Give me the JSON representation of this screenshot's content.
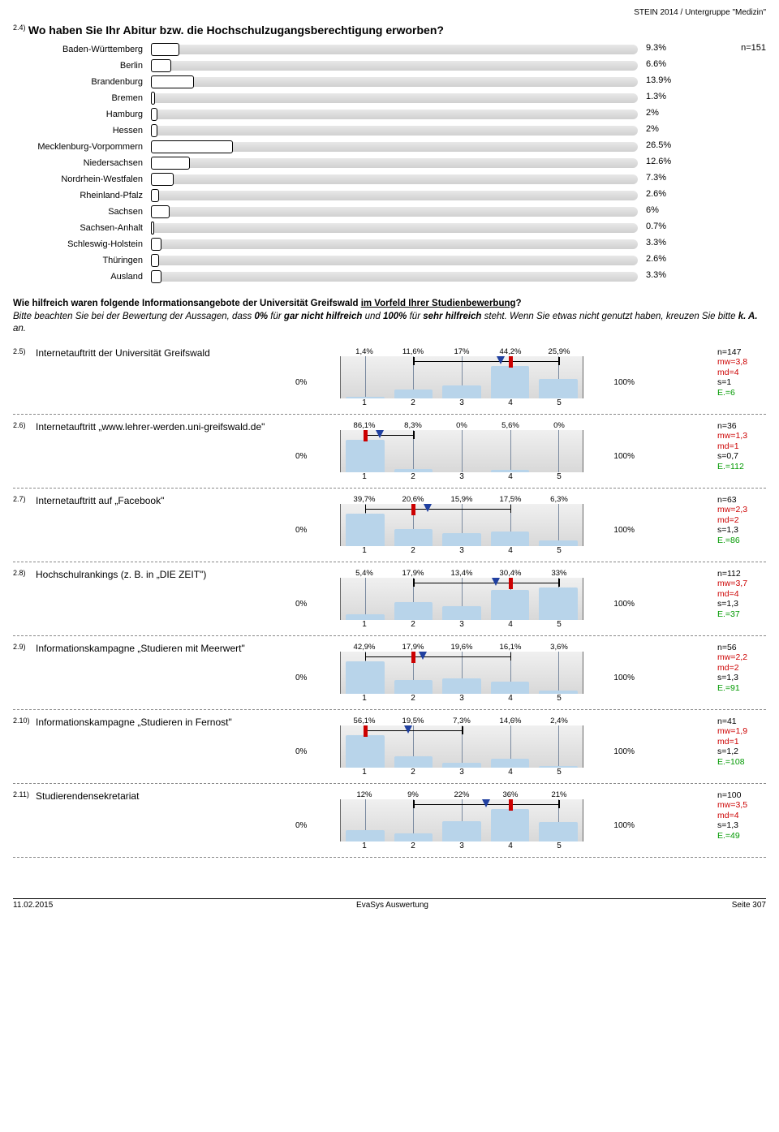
{
  "header": {
    "right": "STEIN 2014 / Untergruppe \"Medizin\""
  },
  "q24": {
    "num": "2.4)",
    "text": "Wo haben Sie Ihr Abitur bzw. die Hochschulzugangsberechtigung erworben?",
    "n": "n=151",
    "bar_track_width": 600,
    "max_pct": 26.5,
    "box_scale": 3.8,
    "items": [
      {
        "label": "Baden-Württemberg",
        "pct": 9.3,
        "disp": "9.3%"
      },
      {
        "label": "Berlin",
        "pct": 6.6,
        "disp": "6.6%"
      },
      {
        "label": "Brandenburg",
        "pct": 13.9,
        "disp": "13.9%"
      },
      {
        "label": "Bremen",
        "pct": 1.3,
        "disp": "1.3%"
      },
      {
        "label": "Hamburg",
        "pct": 2,
        "disp": "2%"
      },
      {
        "label": "Hessen",
        "pct": 2,
        "disp": "2%"
      },
      {
        "label": "Mecklenburg-Vorpommern",
        "pct": 26.5,
        "disp": "26.5%"
      },
      {
        "label": "Niedersachsen",
        "pct": 12.6,
        "disp": "12.6%"
      },
      {
        "label": "Nordrhein-Westfalen",
        "pct": 7.3,
        "disp": "7.3%"
      },
      {
        "label": "Rheinland-Pfalz",
        "pct": 2.6,
        "disp": "2.6%"
      },
      {
        "label": "Sachsen",
        "pct": 6,
        "disp": "6%"
      },
      {
        "label": "Sachsen-Anhalt",
        "pct": 0.7,
        "disp": "0.7%"
      },
      {
        "label": "Schleswig-Holstein",
        "pct": 3.3,
        "disp": "3.3%"
      },
      {
        "label": "Thüringen",
        "pct": 2.6,
        "disp": "2.6%"
      },
      {
        "label": "Ausland",
        "pct": 3.3,
        "disp": "3.3%"
      }
    ]
  },
  "intro": {
    "line1_a": "Wie hilfreich waren folgende Informationsangebote der Universität Greifswald ",
    "line1_u": "im Vorfeld Ihrer Studienbewerbung",
    "line1_b": "?",
    "line2_a": "Bitte beachten Sie bei der Bewertung der Aussagen, dass ",
    "line2_b": "0%",
    "line2_c": " für ",
    "line2_d": "gar nicht hilfreich",
    "line2_e": " und ",
    "line2_f": "100%",
    "line2_g": " für ",
    "line2_h": "sehr hilfreich",
    "line2_i": " steht. Wenn Sie etwas nicht genutzt haben, kreuzen Sie bitte ",
    "line2_j": "k. A.",
    "line2_k": " an."
  },
  "likert": {
    "left_label": "0%",
    "right_label": "100%",
    "axis": [
      "1",
      "2",
      "3",
      "4",
      "5"
    ],
    "items": [
      {
        "num": "2.5)",
        "text": "Internetauftritt der Universität Greifswald",
        "pcts": [
          "1,4%",
          "11,6%",
          "17%",
          "44,2%",
          "25,9%"
        ],
        "vals": [
          1.4,
          11.6,
          17,
          44.2,
          25.9
        ],
        "whisk_lo": 2,
        "whisk_hi": 5,
        "median": 4,
        "mean": 3.8,
        "stats": {
          "n": "n=147",
          "mw": "mw=3,8",
          "md": "md=4",
          "s": "s=1",
          "e": "E.=6"
        }
      },
      {
        "num": "2.6)",
        "text": "Internetauftritt „www.lehrer-werden.uni-greifswald.de\"",
        "pcts": [
          "86,1%",
          "8,3%",
          "0%",
          "5,6%",
          "0%"
        ],
        "vals": [
          86.1,
          8.3,
          0,
          5.6,
          0
        ],
        "whisk_lo": 1,
        "whisk_hi": 2,
        "median": 1,
        "mean": 1.3,
        "stats": {
          "n": "n=36",
          "mw": "mw=1,3",
          "md": "md=1",
          "s": "s=0,7",
          "e": "E.=112"
        }
      },
      {
        "num": "2.7)",
        "text": "Internetauftritt auf „Facebook\"",
        "pcts": [
          "39,7%",
          "20,6%",
          "15,9%",
          "17,5%",
          "6,3%"
        ],
        "vals": [
          39.7,
          20.6,
          15.9,
          17.5,
          6.3
        ],
        "whisk_lo": 1,
        "whisk_hi": 4,
        "median": 2,
        "mean": 2.3,
        "stats": {
          "n": "n=63",
          "mw": "mw=2,3",
          "md": "md=2",
          "s": "s=1,3",
          "e": "E.=86"
        }
      },
      {
        "num": "2.8)",
        "text": "Hochschulrankings (z. B. in „DIE ZEIT\")",
        "pcts": [
          "5,4%",
          "17,9%",
          "13,4%",
          "30,4%",
          "33%"
        ],
        "vals": [
          5.4,
          17.9,
          13.4,
          30.4,
          33
        ],
        "whisk_lo": 2,
        "whisk_hi": 5,
        "median": 4,
        "mean": 3.7,
        "stats": {
          "n": "n=112",
          "mw": "mw=3,7",
          "md": "md=4",
          "s": "s=1,3",
          "e": "E.=37"
        }
      },
      {
        "num": "2.9)",
        "text": "Informationskampagne „Studieren mit Meerwert\"",
        "pcts": [
          "42,9%",
          "17,9%",
          "19,6%",
          "16,1%",
          "3,6%"
        ],
        "vals": [
          42.9,
          17.9,
          19.6,
          16.1,
          3.6
        ],
        "whisk_lo": 1,
        "whisk_hi": 4,
        "median": 2,
        "mean": 2.2,
        "stats": {
          "n": "n=56",
          "mw": "mw=2,2",
          "md": "md=2",
          "s": "s=1,3",
          "e": "E.=91"
        }
      },
      {
        "num": "2.10)",
        "text": "Informationskampagne „Studieren in Fernost\"",
        "pcts": [
          "56,1%",
          "19,5%",
          "7,3%",
          "14,6%",
          "2,4%"
        ],
        "vals": [
          56.1,
          19.5,
          7.3,
          14.6,
          2.4
        ],
        "whisk_lo": 1,
        "whisk_hi": 3,
        "median": 1,
        "mean": 1.9,
        "stats": {
          "n": "n=41",
          "mw": "mw=1,9",
          "md": "md=1",
          "s": "s=1,2",
          "e": "E.=108"
        }
      },
      {
        "num": "2.11)",
        "text": "Studierendensekretariat",
        "pcts": [
          "12%",
          "9%",
          "22%",
          "36%",
          "21%"
        ],
        "vals": [
          12,
          9,
          22,
          36,
          21
        ],
        "whisk_lo": 2,
        "whisk_hi": 5,
        "median": 4,
        "mean": 3.5,
        "stats": {
          "n": "n=100",
          "mw": "mw=3,5",
          "md": "md=4",
          "s": "s=1,3",
          "e": "E.=49"
        }
      }
    ]
  },
  "footer": {
    "left": "11.02.2015",
    "center": "EvaSys Auswertung",
    "right": "Seite 307"
  }
}
